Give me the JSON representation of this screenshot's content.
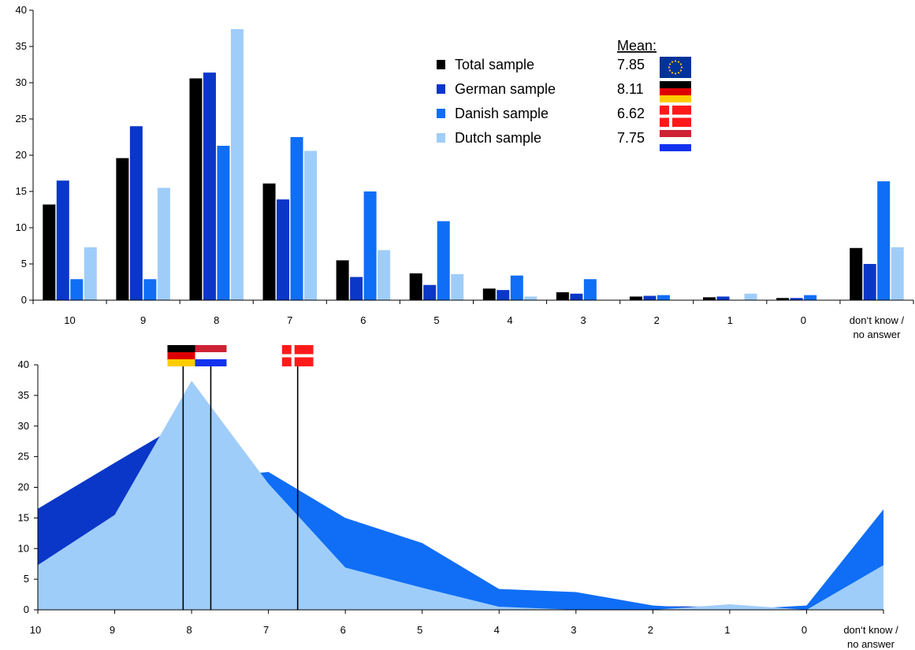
{
  "colors": {
    "total": "#000000",
    "german": "#0a37c8",
    "danish": "#0f6ef5",
    "dutch": "#9fcdfa"
  },
  "legend": {
    "mean_header": "Mean:",
    "items": [
      {
        "label": "Total sample",
        "mean": "7.85",
        "color": "#000000",
        "flag": "eu-flag-icon"
      },
      {
        "label": "German sample",
        "mean": "8.11",
        "color": "#0a37c8",
        "flag": "germany-flag-icon"
      },
      {
        "label": "Danish sample",
        "mean": "6.62",
        "color": "#0f6ef5",
        "flag": "denmark-flag-icon"
      },
      {
        "label": "Dutch sample",
        "mean": "7.75",
        "color": "#9fcdfa",
        "flag": "netherlands-flag-icon"
      }
    ]
  },
  "chart_data": [
    {
      "type": "bar",
      "categories": [
        "10",
        "9",
        "8",
        "7",
        "6",
        "5",
        "4",
        "3",
        "2",
        "1",
        "0",
        "don't know / no answer"
      ],
      "category_lines": [
        [
          "10"
        ],
        [
          "9"
        ],
        [
          "8"
        ],
        [
          "7"
        ],
        [
          "6"
        ],
        [
          "5"
        ],
        [
          "4"
        ],
        [
          "3"
        ],
        [
          "2"
        ],
        [
          "1"
        ],
        [
          "0"
        ],
        [
          "don‘t know /",
          "no answer"
        ]
      ],
      "ylim": [
        0,
        40
      ],
      "yticks": [
        0,
        5,
        10,
        15,
        20,
        25,
        30,
        35,
        40
      ],
      "series": [
        {
          "name": "Total sample",
          "color": "#000000",
          "values": [
            13.2,
            19.6,
            30.6,
            16.1,
            5.5,
            3.7,
            1.6,
            1.1,
            0.5,
            0.4,
            0.3,
            7.2
          ]
        },
        {
          "name": "German sample",
          "color": "#0a37c8",
          "values": [
            16.5,
            24.0,
            31.4,
            13.9,
            3.2,
            2.1,
            1.4,
            0.9,
            0.6,
            0.5,
            0.3,
            5.0
          ]
        },
        {
          "name": "Danish sample",
          "color": "#0f6ef5",
          "values": [
            2.9,
            2.9,
            21.3,
            22.5,
            15.0,
            10.9,
            3.4,
            2.9,
            0.7,
            0.0,
            0.7,
            16.4
          ]
        },
        {
          "name": "Dutch sample",
          "color": "#9fcdfa",
          "values": [
            7.3,
            15.5,
            37.4,
            20.6,
            6.9,
            3.6,
            0.5,
            0.0,
            0.0,
            0.9,
            0.0,
            7.3
          ]
        }
      ]
    },
    {
      "type": "area",
      "categories": [
        "10",
        "9",
        "8",
        "7",
        "6",
        "5",
        "4",
        "3",
        "2",
        "1",
        "0",
        "don't know / no answer"
      ],
      "category_lines": [
        [
          "10"
        ],
        [
          "9"
        ],
        [
          "8"
        ],
        [
          "7"
        ],
        [
          "6"
        ],
        [
          "5"
        ],
        [
          "4"
        ],
        [
          "3"
        ],
        [
          "2"
        ],
        [
          "1"
        ],
        [
          "0"
        ],
        [
          "don‘t know /",
          "no answer"
        ]
      ],
      "ylim": [
        0,
        40
      ],
      "yticks": [
        0,
        5,
        10,
        15,
        20,
        25,
        30,
        35,
        40
      ],
      "series": [
        {
          "name": "German sample",
          "color": "#0a37c8",
          "values": [
            16.5,
            24.0,
            31.4,
            13.9,
            3.2,
            2.1,
            1.4,
            0.9,
            0.6,
            0.5,
            0.3,
            5.0
          ]
        },
        {
          "name": "Danish sample",
          "color": "#0f6ef5",
          "values": [
            2.9,
            2.9,
            21.3,
            22.5,
            15.0,
            10.9,
            3.4,
            2.9,
            0.7,
            0.0,
            0.7,
            16.4
          ]
        },
        {
          "name": "Dutch sample",
          "color": "#9fcdfa",
          "values": [
            7.3,
            15.5,
            37.4,
            20.6,
            6.9,
            3.6,
            0.5,
            0.0,
            0.0,
            0.9,
            0.0,
            7.3
          ]
        }
      ],
      "mean_markers": [
        {
          "country": "Germany",
          "value": 8.11,
          "flag": "germany-flag-icon"
        },
        {
          "country": "Netherlands",
          "value": 7.75,
          "flag": "netherlands-flag-icon"
        },
        {
          "country": "Denmark",
          "value": 6.62,
          "flag": "denmark-flag-icon"
        }
      ]
    }
  ]
}
